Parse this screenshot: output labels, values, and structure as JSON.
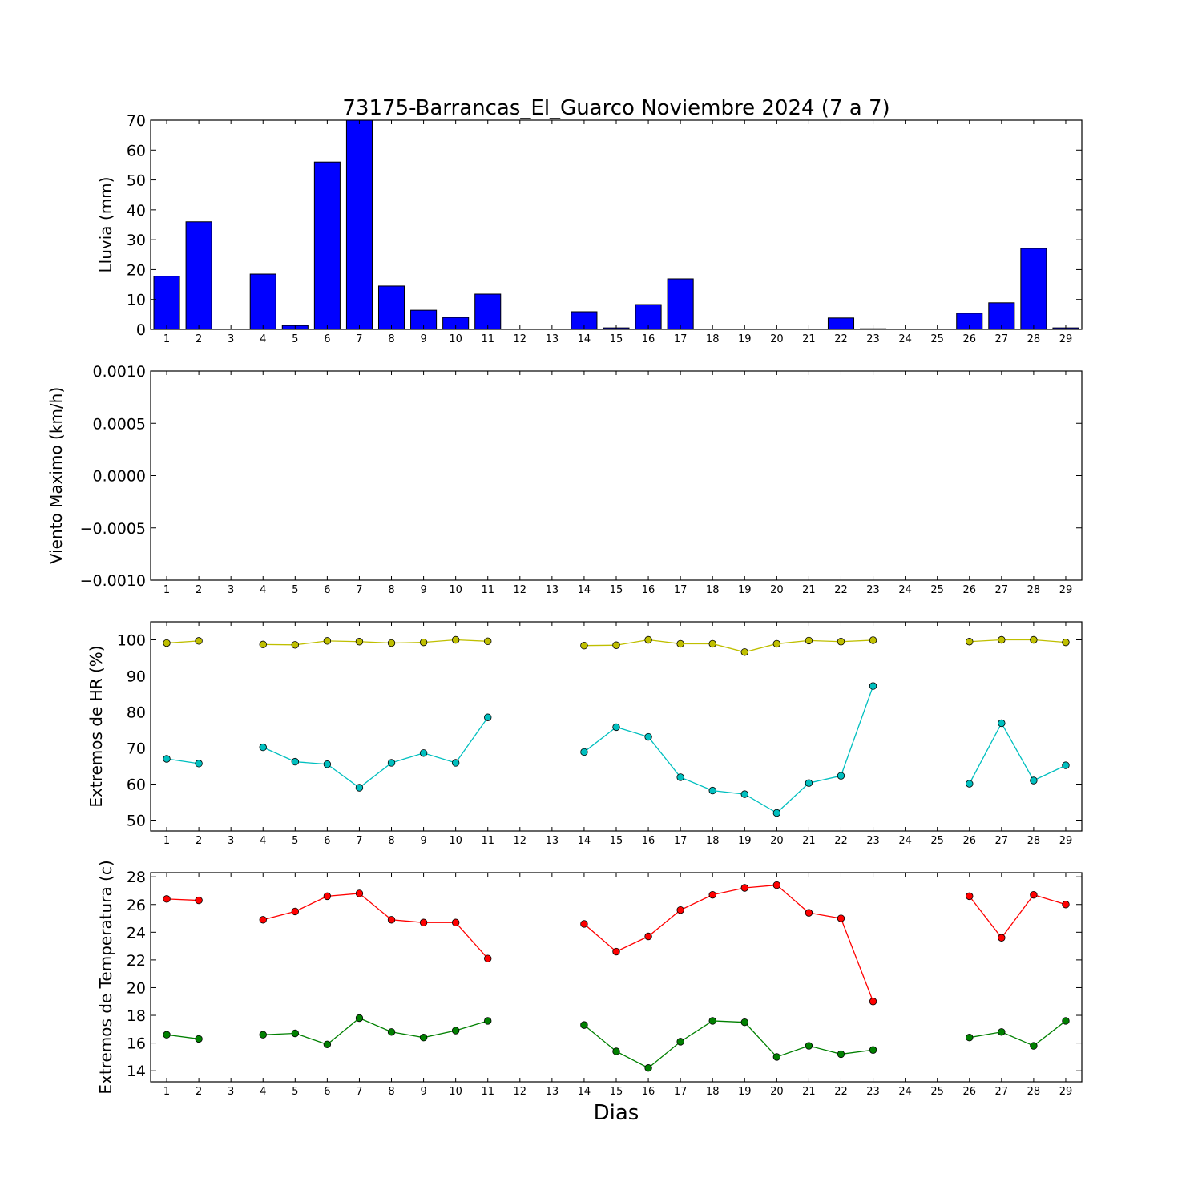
{
  "figure": {
    "title": "73175-Barrancas_El_Guarco Noviembre 2024  (7 a 7)",
    "xlabel": "Dias"
  },
  "chart_data": [
    {
      "type": "bar",
      "ylabel": "Lluvia (mm)",
      "ylim": [
        0,
        70
      ],
      "yticks": [
        0,
        10,
        20,
        30,
        40,
        50,
        60,
        70
      ],
      "ytick_labels": [
        "0",
        "10",
        "20",
        "30",
        "40",
        "50",
        "60",
        "70"
      ],
      "categories": [
        "1",
        "2",
        "3",
        "4",
        "5",
        "6",
        "7",
        "8",
        "9",
        "10",
        "11",
        "12",
        "13",
        "14",
        "15",
        "16",
        "17",
        "18",
        "19",
        "20",
        "21",
        "22",
        "23",
        "24",
        "25",
        "26",
        "27",
        "28",
        "29"
      ],
      "values": [
        17.8,
        36.0,
        0,
        18.5,
        1.3,
        56.0,
        70.0,
        14.5,
        6.4,
        4.0,
        11.8,
        0,
        0,
        5.9,
        0.5,
        8.3,
        16.9,
        0.1,
        0.1,
        0.1,
        0,
        3.8,
        0.2,
        0,
        0,
        5.4,
        8.9,
        27.1,
        0.5
      ],
      "color": "#0000ff",
      "grid": false
    },
    {
      "type": "line",
      "ylabel": "Viento Maximo (km/h)",
      "ylim": [
        -0.001,
        0.001
      ],
      "yticks": [
        -0.001,
        -0.0005,
        0,
        0.0005,
        0.001
      ],
      "ytick_labels": [
        "−0.0010",
        "−0.0005",
        "0.0000",
        "0.0005",
        "0.0010"
      ],
      "categories": [
        "1",
        "2",
        "3",
        "4",
        "5",
        "6",
        "7",
        "8",
        "9",
        "10",
        "11",
        "12",
        "13",
        "14",
        "15",
        "16",
        "17",
        "18",
        "19",
        "20",
        "21",
        "22",
        "23",
        "24",
        "25",
        "26",
        "27",
        "28",
        "29"
      ],
      "series": [],
      "grid": false
    },
    {
      "type": "line",
      "ylabel": "Extremos de HR (%)",
      "ylim": [
        47,
        105
      ],
      "yticks": [
        50,
        60,
        70,
        80,
        90,
        100
      ],
      "ytick_labels": [
        "50",
        "60",
        "70",
        "80",
        "90",
        "100"
      ],
      "categories": [
        "1",
        "2",
        "3",
        "4",
        "5",
        "6",
        "7",
        "8",
        "9",
        "10",
        "11",
        "12",
        "13",
        "14",
        "15",
        "16",
        "17",
        "18",
        "19",
        "20",
        "21",
        "22",
        "23",
        "24",
        "25",
        "26",
        "27",
        "28",
        "29"
      ],
      "series": [
        {
          "color": "#bfbf00",
          "values": [
            99.1,
            99.7,
            null,
            98.7,
            98.6,
            99.7,
            99.5,
            99.1,
            99.3,
            100,
            99.6,
            null,
            null,
            98.4,
            98.5,
            100,
            98.9,
            98.9,
            96.6,
            98.9,
            99.8,
            99.5,
            99.9,
            null,
            null,
            99.5,
            100,
            100,
            99.3
          ]
        },
        {
          "color": "#00bfbf",
          "values": [
            67.0,
            65.7,
            null,
            70.2,
            66.2,
            65.5,
            59.0,
            65.9,
            68.6,
            65.9,
            78.5,
            null,
            null,
            68.9,
            75.8,
            73.1,
            61.9,
            58.2,
            57.2,
            52.0,
            60.3,
            62.3,
            87.2,
            null,
            null,
            60.1,
            76.9,
            61.0,
            65.2
          ]
        }
      ],
      "grid": false
    },
    {
      "type": "line",
      "ylabel": "Extremos de Temperatura (c)",
      "ylim": [
        13.2,
        28.3
      ],
      "yticks": [
        14,
        16,
        18,
        20,
        22,
        24,
        26,
        28
      ],
      "ytick_labels": [
        "14",
        "16",
        "18",
        "20",
        "22",
        "24",
        "26",
        "28"
      ],
      "categories": [
        "1",
        "2",
        "3",
        "4",
        "5",
        "6",
        "7",
        "8",
        "9",
        "10",
        "11",
        "12",
        "13",
        "14",
        "15",
        "16",
        "17",
        "18",
        "19",
        "20",
        "21",
        "22",
        "23",
        "24",
        "25",
        "26",
        "27",
        "28",
        "29"
      ],
      "series": [
        {
          "color": "#ff0000",
          "values": [
            26.4,
            26.3,
            null,
            24.9,
            25.5,
            26.6,
            26.8,
            24.9,
            24.7,
            24.7,
            22.1,
            null,
            null,
            24.6,
            22.6,
            23.7,
            25.6,
            26.7,
            27.2,
            27.4,
            25.4,
            25.0,
            19.0,
            null,
            null,
            26.6,
            23.6,
            26.7,
            26.0
          ]
        },
        {
          "color": "#008000",
          "values": [
            16.6,
            16.3,
            null,
            16.6,
            16.7,
            15.9,
            17.8,
            16.8,
            16.4,
            16.9,
            17.6,
            null,
            null,
            17.3,
            15.4,
            14.2,
            16.1,
            17.6,
            17.5,
            15.0,
            15.8,
            15.2,
            15.5,
            null,
            null,
            16.4,
            16.8,
            15.8,
            17.6
          ]
        }
      ],
      "grid": false
    }
  ]
}
